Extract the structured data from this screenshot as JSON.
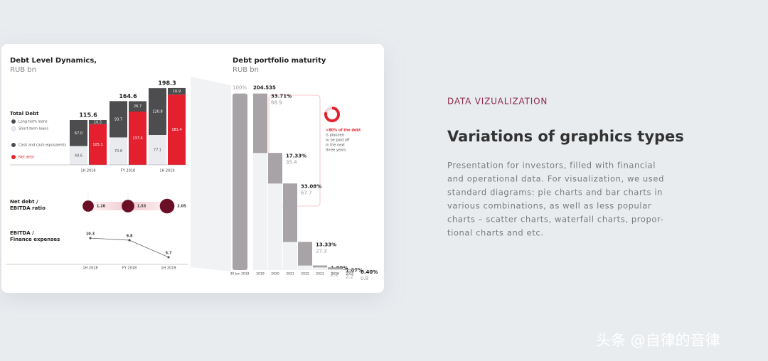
{
  "card": {
    "debt_level": {
      "type": "bar",
      "title": "Debt Level Dynamics,",
      "subtitle": "RUB bn",
      "legend_title": "Total Debt",
      "categories": [
        "1H 2018",
        "FY 2018",
        "1H 2019"
      ],
      "totals": [
        115.6,
        164.6,
        198.3
      ],
      "series": [
        {
          "name": "Long-term loans",
          "color": "#4d4d4f",
          "values": [
            67.0,
            93.7,
            120.8
          ],
          "value_labels": [
            "67.0",
            "93.7",
            "120.8"
          ]
        },
        {
          "name": "Short-term loans",
          "color": "#e9ebee",
          "values": [
            48.6,
            70.8,
            77.1
          ]
        },
        {
          "name": "Cash and cash equivalents",
          "color": "#4d4d4f",
          "values": [
            10.5,
            26.7,
            16.9
          ]
        },
        {
          "name": "Net debt",
          "color": "#e5202e",
          "values": [
            105.1,
            137.6,
            181.4
          ]
        }
      ],
      "ylim": [
        0,
        200
      ]
    },
    "ratio": {
      "type": "bubble",
      "title_lines": [
        "Net debt /",
        "EBITDA ratio"
      ],
      "values": [
        1.2,
        1.53,
        2.05
      ],
      "value_labels": [
        "1.20",
        "1.53",
        "2.05"
      ],
      "color": "#6b0f26"
    },
    "ebitda": {
      "type": "line",
      "title_lines": [
        "EBITDA /",
        "Finance expenses"
      ],
      "categories": [
        "1H 2018",
        "FY 2018",
        "1H 2019"
      ],
      "values": [
        10.3,
        9.8,
        5.7
      ],
      "ylim": [
        5,
        11
      ],
      "color": "#555555"
    },
    "maturity": {
      "type": "waterfall",
      "title": "Debt portfolio maturity",
      "subtitle": "RUB bn",
      "total_label": "100%",
      "total": 204.535,
      "total_category": "30 Jun 2019",
      "categories": [
        "2019",
        "2020",
        "2021",
        "2022",
        "2023",
        "2024",
        "2025"
      ],
      "values": [
        68.9,
        35.4,
        67.7,
        27.3,
        2.2,
        2.2,
        0.8
      ],
      "shares": [
        33.71,
        17.33,
        33.08,
        13.33,
        1.09,
        1.07,
        0.4
      ],
      "share_labels": [
        "33.71%",
        "17.33%",
        "33.08%",
        "13.33%",
        "1.09%",
        "1.07%",
        "0.40%"
      ],
      "ylim": [
        0,
        210
      ],
      "color": "#a7a3a6",
      "annotation": [
        ">80% of the debt",
        "is planned",
        "to be paid off",
        "in the next",
        "three years"
      ]
    }
  },
  "section": {
    "label": "DATA VIZUALIZATION",
    "title": "Variations of graphics types",
    "description": [
      "Presentation for investors, filled with financial",
      "and operational data. For visualization, we used",
      "standard diagrams: pie charts and bar charts in",
      "various combinations, as well as less popular",
      "charts – scatter charts, waterfall charts, propor-",
      "tional charts and etc."
    ]
  },
  "watermark": "头条 @自律的音律"
}
